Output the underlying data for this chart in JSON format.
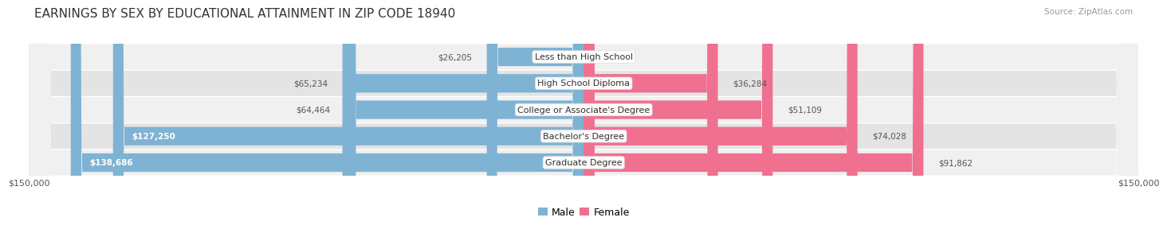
{
  "title": "EARNINGS BY SEX BY EDUCATIONAL ATTAINMENT IN ZIP CODE 18940",
  "source": "Source: ZipAtlas.com",
  "categories": [
    "Less than High School",
    "High School Diploma",
    "College or Associate's Degree",
    "Bachelor's Degree",
    "Graduate Degree"
  ],
  "male_values": [
    26205,
    65234,
    64464,
    127250,
    138686
  ],
  "female_values": [
    0,
    36284,
    51109,
    74028,
    91862
  ],
  "max_val": 150000,
  "male_color": "#7fb3d3",
  "female_color": "#f07090",
  "row_bg_colors": [
    "#f0f0f0",
    "#e4e4e4"
  ],
  "title_fontsize": 11,
  "label_fontsize": 8,
  "value_fontsize": 7.5,
  "axis_label": "$150,000",
  "background_color": "#ffffff",
  "title_color": "#333333",
  "source_color": "#999999"
}
